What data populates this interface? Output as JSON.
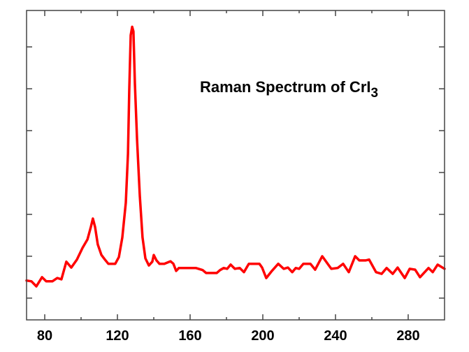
{
  "chart_data": {
    "type": "line",
    "title": "Raman Spectrum of CrI",
    "title_subscript": "3",
    "xlabel": "",
    "ylabel": "",
    "xlim": [
      70,
      300
    ],
    "ylim": [
      -0.52,
      6.87
    ],
    "x_ticks": [
      80,
      120,
      160,
      200,
      240,
      280
    ],
    "x_minor_ticks": [
      100,
      140,
      180,
      220,
      260
    ],
    "y_ticks": [
      0,
      1,
      2,
      3,
      4,
      5,
      6
    ],
    "y_tick_labels_shown": false,
    "grid": false,
    "line_color": "#ff0000",
    "series": [
      {
        "x": [
          70,
          72.7,
          75.4,
          78.5,
          80.8,
          84.2,
          86.9,
          89.2,
          91.9,
          94.6,
          97.7,
          100.8,
          103.5,
          105.4,
          106.5,
          107.7,
          109.2,
          111.2,
          113.1,
          115,
          118.8,
          120.8,
          122.7,
          124.6,
          125.8,
          126.5,
          127.3,
          128.1,
          128.8,
          129.6,
          130.8,
          132.3,
          133.8,
          135.4,
          137.3,
          139.2,
          140,
          141.5,
          143.1,
          145.8,
          149.2,
          150.8,
          152.3,
          153.8,
          155.4,
          163.1,
          166.9,
          168.8,
          174.6,
          176.5,
          178.5,
          180.4,
          182.3,
          184.6,
          187.3,
          189.6,
          192.3,
          198.1,
          199.6,
          201.9,
          205,
          208.5,
          211.5,
          213.8,
          216.2,
          218.1,
          220,
          222.3,
          226.2,
          228.8,
          232.7,
          237.7,
          241.2,
          244.2,
          247.3,
          250.8,
          253.1,
          256.5,
          258.5,
          262.3,
          265.4,
          268.1,
          271.5,
          274.2,
          278.1,
          280.8,
          283.8,
          286.5,
          291.2,
          293.5,
          296.2,
          300
        ],
        "y": [
          0.42,
          0.4,
          0.28,
          0.5,
          0.4,
          0.4,
          0.48,
          0.45,
          0.87,
          0.73,
          0.92,
          1.2,
          1.4,
          1.7,
          1.9,
          1.7,
          1.28,
          1.03,
          0.92,
          0.82,
          0.82,
          0.98,
          1.45,
          2.28,
          3.45,
          4.95,
          6.28,
          6.48,
          6.37,
          5.12,
          3.78,
          2.45,
          1.45,
          0.95,
          0.78,
          0.87,
          1.03,
          0.9,
          0.82,
          0.82,
          0.88,
          0.82,
          0.65,
          0.72,
          0.72,
          0.72,
          0.67,
          0.6,
          0.6,
          0.67,
          0.72,
          0.7,
          0.8,
          0.7,
          0.72,
          0.62,
          0.82,
          0.82,
          0.73,
          0.48,
          0.65,
          0.82,
          0.7,
          0.73,
          0.62,
          0.72,
          0.7,
          0.82,
          0.82,
          0.68,
          1.0,
          0.7,
          0.72,
          0.82,
          0.62,
          1.0,
          0.9,
          0.9,
          0.92,
          0.62,
          0.58,
          0.72,
          0.58,
          0.73,
          0.48,
          0.7,
          0.68,
          0.5,
          0.72,
          0.62,
          0.8,
          0.7
        ]
      }
    ]
  }
}
